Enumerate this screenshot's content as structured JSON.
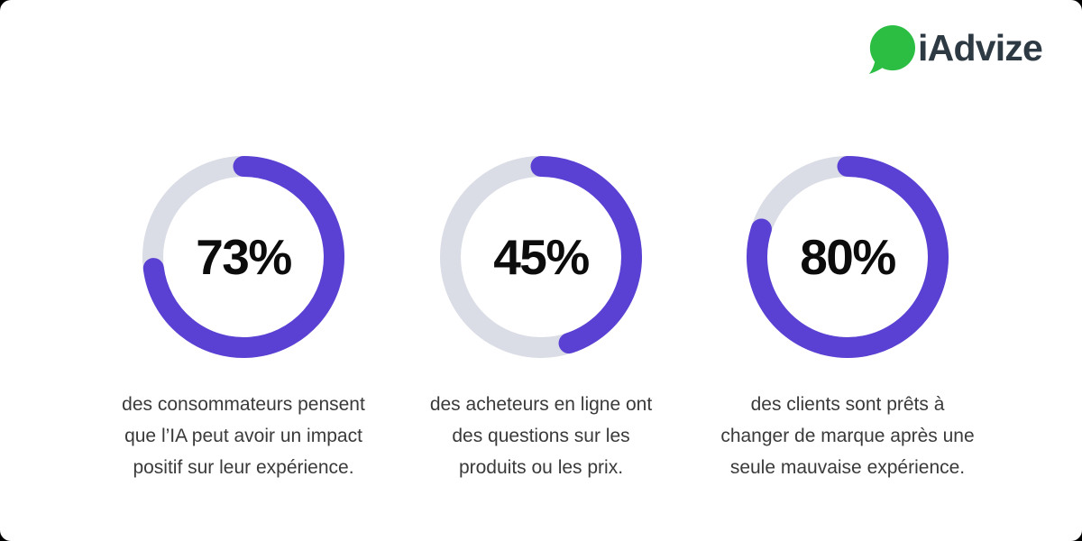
{
  "brand": {
    "name": "iAdvize",
    "bubble_color": "#2BBE43",
    "wordmark_color": "#2E3A43"
  },
  "chart_data": {
    "type": "pie",
    "subtype": "donut-progress",
    "series": [
      {
        "value": 73,
        "label": "73%",
        "caption": "des consommateurs pensent que l’IA peut avoir un impact positif sur leur expérience.",
        "caption_lines": [
          "des consommateurs pensent",
          "que l’IA peut avoir un impact",
          "positif sur leur expérience."
        ]
      },
      {
        "value": 45,
        "label": "45%",
        "caption": "des acheteurs en ligne ont des questions sur les produits ou les prix.",
        "caption_lines": [
          "des acheteurs en ligne ont",
          "des questions sur les",
          "produits ou les prix."
        ]
      },
      {
        "value": 80,
        "label": "80%",
        "caption": "des clients sont prêts à changer de marque après une seule mauvaise expérience.",
        "caption_lines": [
          "des clients sont prêts à",
          "changer de marque après une",
          "seule mauvaise expérience."
        ]
      }
    ],
    "colors": {
      "fill": "#5B40D4",
      "track": "#DADCE6"
    },
    "start_angle_deg": 0,
    "direction": "clockwise",
    "stroke_linecap": "round",
    "legend_position": "none"
  }
}
